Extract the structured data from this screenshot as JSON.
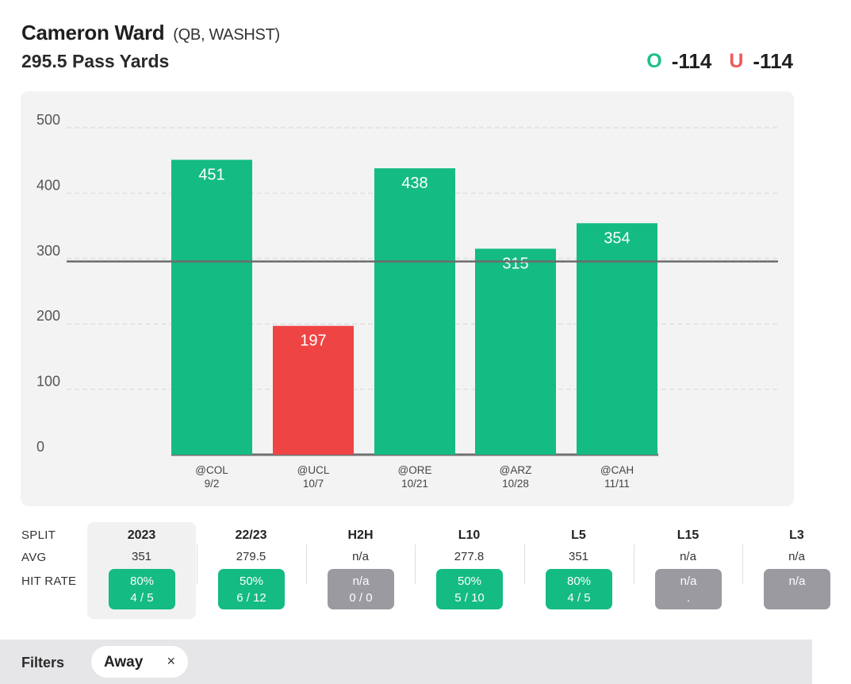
{
  "header": {
    "player_name": "Cameron Ward",
    "player_meta": "(QB, WASHST)",
    "prop": "295.5 Pass Yards",
    "over_letter": "O",
    "over_odds": "-114",
    "under_letter": "U",
    "under_odds": "-114"
  },
  "colors": {
    "over": "#14bb82",
    "under": "#ef4444",
    "gray": "#9a9aa0"
  },
  "chart_data": {
    "type": "bar",
    "categories": [
      "@COL",
      "@UCL",
      "@ORE",
      "@ARZ",
      "@CAH"
    ],
    "dates": [
      "9/2",
      "10/7",
      "10/21",
      "10/28",
      "11/11"
    ],
    "values": [
      451,
      197,
      438,
      315,
      354
    ],
    "line": 295.5,
    "ylim": [
      0,
      500
    ],
    "yticks": [
      0,
      100,
      200,
      300,
      400,
      500
    ],
    "grid": true
  },
  "splits": {
    "row_labels": {
      "split": "SPLIT",
      "avg": "AVG",
      "hit_rate": "HIT RATE"
    },
    "columns": [
      {
        "title": "2023",
        "avg": "351",
        "pct": "80%",
        "record": "4 / 5",
        "status": "green",
        "selected": true
      },
      {
        "title": "22/23",
        "avg": "279.5",
        "pct": "50%",
        "record": "6 / 12",
        "status": "green"
      },
      {
        "title": "H2H",
        "avg": "n/a",
        "pct": "n/a",
        "record": "0 / 0",
        "status": "gray"
      },
      {
        "title": "L10",
        "avg": "277.8",
        "pct": "50%",
        "record": "5 / 10",
        "status": "green"
      },
      {
        "title": "L5",
        "avg": "351",
        "pct": "80%",
        "record": "4 / 5",
        "status": "green"
      },
      {
        "title": "L15",
        "avg": "n/a",
        "pct": "n/a",
        "record": ".",
        "status": "gray"
      },
      {
        "title": "L3",
        "avg": "n/a",
        "pct": "n/a",
        "record": "",
        "status": "gray"
      }
    ]
  },
  "filters": {
    "label": "Filters",
    "chip_label": "Away",
    "chip_close": "×"
  }
}
